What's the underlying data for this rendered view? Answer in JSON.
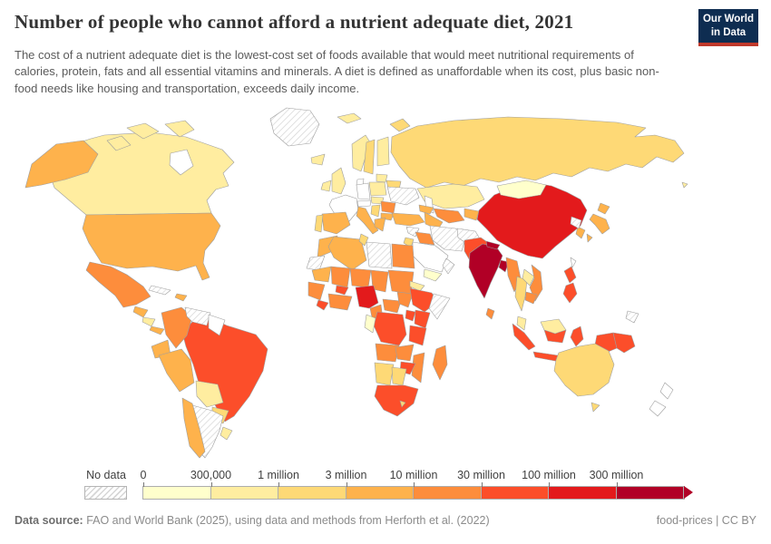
{
  "header": {
    "title": "Number of people who cannot afford a nutrient adequate diet, 2021",
    "subtitle": "The cost of a nutrient adequate diet is the lowest-cost set of foods available that would meet nutritional requirements of calories, protein, fats and all essential vitamins and minerals. A diet is defined as unaffordable when its cost, plus basic non-food needs like housing and transportation, exceeds daily income."
  },
  "logo": {
    "line1": "Our World",
    "line2": "in Data",
    "bg_color": "#0e2d51",
    "accent_color": "#c0392b"
  },
  "legend": {
    "no_data_label": "No data",
    "tick_labels": [
      "0",
      "300,000",
      "1 million",
      "3 million",
      "10 million",
      "30 million",
      "100 million",
      "300 million"
    ]
  },
  "footer": {
    "source_label": "Data source:",
    "source_text": " FAO and World Bank (2025), using data and methods from Herforth et al. (2022)",
    "right_text": "food-prices | CC BY"
  },
  "chart_data": {
    "type": "choropleth",
    "title": "Number of people who cannot afford a nutrient adequate diet",
    "year": 2021,
    "unit": "people",
    "legend_position": "bottom",
    "no_data_pattern": "diagonal-hatch",
    "zero_fill": "#FFFFFF",
    "bins": [
      {
        "range": "0 – 300,000",
        "color": "#FFFFCC"
      },
      {
        "range": "300,000 – 1 million",
        "color": "#FFEDA0"
      },
      {
        "range": "1 million – 3 million",
        "color": "#FED976"
      },
      {
        "range": "3 million – 10 million",
        "color": "#FEB24C"
      },
      {
        "range": "10 million – 30 million",
        "color": "#FD8D3C"
      },
      {
        "range": "30 million – 100 million",
        "color": "#FC4E2A"
      },
      {
        "range": "100 million – 300 million",
        "color": "#E31A1C"
      },
      {
        "range": "300 million+",
        "color": "#B10026"
      }
    ],
    "countries": [
      {
        "id": "greenland",
        "name": "Greenland",
        "bin": "no-data"
      },
      {
        "id": "canada",
        "name": "Canada",
        "bin": 1
      },
      {
        "id": "usa",
        "name": "United States",
        "bin": 3
      },
      {
        "id": "mexico",
        "name": "Mexico",
        "bin": 4
      },
      {
        "id": "guatemala",
        "name": "Guatemala",
        "bin": 3
      },
      {
        "id": "honduras-nicaragua",
        "name": "Honduras & Nicaragua",
        "bin": 1
      },
      {
        "id": "costa-rica-panama",
        "name": "Costa Rica & Panama",
        "bin": 3
      },
      {
        "id": "cuba",
        "name": "Cuba",
        "bin": "no-data"
      },
      {
        "id": "hispaniola",
        "name": "Haiti & Dominican Republic",
        "bin": 3
      },
      {
        "id": "colombia",
        "name": "Colombia",
        "bin": 4
      },
      {
        "id": "venezuela",
        "name": "Venezuela",
        "bin": "no-data"
      },
      {
        "id": "guyanas",
        "name": "Guyana & Suriname",
        "bin": "zero"
      },
      {
        "id": "ecuador",
        "name": "Ecuador",
        "bin": 3
      },
      {
        "id": "peru",
        "name": "Peru",
        "bin": 3
      },
      {
        "id": "brazil",
        "name": "Brazil",
        "bin": 5
      },
      {
        "id": "bolivia",
        "name": "Bolivia",
        "bin": 1
      },
      {
        "id": "paraguay",
        "name": "Paraguay",
        "bin": 2
      },
      {
        "id": "chile",
        "name": "Chile",
        "bin": 3
      },
      {
        "id": "argentina",
        "name": "Argentina",
        "bin": "no-data"
      },
      {
        "id": "uruguay",
        "name": "Uruguay",
        "bin": 1
      },
      {
        "id": "iceland",
        "name": "Iceland",
        "bin": 1
      },
      {
        "id": "svalbard",
        "name": "Svalbard",
        "bin": 1
      },
      {
        "id": "uk",
        "name": "United Kingdom",
        "bin": 1
      },
      {
        "id": "ireland",
        "name": "Ireland",
        "bin": 1
      },
      {
        "id": "norway",
        "name": "Norway",
        "bin": 1
      },
      {
        "id": "sweden",
        "name": "Sweden",
        "bin": 2
      },
      {
        "id": "finland",
        "name": "Finland",
        "bin": 1
      },
      {
        "id": "denmark",
        "name": "Denmark",
        "bin": "zero"
      },
      {
        "id": "baltics",
        "name": "Baltic states",
        "bin": 1
      },
      {
        "id": "belarus",
        "name": "Belarus",
        "bin": 2
      },
      {
        "id": "poland",
        "name": "Poland",
        "bin": 1
      },
      {
        "id": "germany",
        "name": "Germany",
        "bin": "zero"
      },
      {
        "id": "france",
        "name": "France",
        "bin": "zero"
      },
      {
        "id": "spain",
        "name": "Spain",
        "bin": 3
      },
      {
        "id": "portugal",
        "name": "Portugal",
        "bin": 2
      },
      {
        "id": "italy",
        "name": "Italy",
        "bin": 3
      },
      {
        "id": "switzerland-austria",
        "name": "Switzerland & Austria",
        "bin": "zero"
      },
      {
        "id": "czech-hungary",
        "name": "Czechia & Hungary",
        "bin": 1
      },
      {
        "id": "romania",
        "name": "Romania",
        "bin": 4
      },
      {
        "id": "balkans",
        "name": "Western Balkans",
        "bin": 2
      },
      {
        "id": "bulgaria",
        "name": "Bulgaria",
        "bin": 3
      },
      {
        "id": "greece",
        "name": "Greece",
        "bin": 3
      },
      {
        "id": "ukraine",
        "name": "Ukraine",
        "bin": "no-data"
      },
      {
        "id": "russia",
        "name": "Russia",
        "bin": 2
      },
      {
        "id": "kazakhstan",
        "name": "Kazakhstan",
        "bin": 1
      },
      {
        "id": "uzbekistan",
        "name": "Uzbekistan",
        "bin": 4
      },
      {
        "id": "turkmenistan",
        "name": "Turkmenistan",
        "bin": 3
      },
      {
        "id": "kyrgyzstan-tajikistan",
        "name": "Kyrgyzstan & Tajikistan",
        "bin": 3
      },
      {
        "id": "caucasus",
        "name": "Caucasus",
        "bin": 3
      },
      {
        "id": "turkey",
        "name": "Turkey",
        "bin": 3
      },
      {
        "id": "syria",
        "name": "Syria",
        "bin": "no-data"
      },
      {
        "id": "iraq",
        "name": "Iraq",
        "bin": 4
      },
      {
        "id": "iran",
        "name": "Iran",
        "bin": "no-data"
      },
      {
        "id": "saudi-arabia",
        "name": "Saudi Arabia",
        "bin": "zero"
      },
      {
        "id": "yemen",
        "name": "Yemen",
        "bin": 0
      },
      {
        "id": "oman",
        "name": "Oman",
        "bin": "no-data"
      },
      {
        "id": "jordan-israel",
        "name": "Jordan & Israel",
        "bin": 2
      },
      {
        "id": "afghanistan",
        "name": "Afghanistan",
        "bin": "no-data"
      },
      {
        "id": "pakistan",
        "name": "Pakistan",
        "bin": 5
      },
      {
        "id": "china",
        "name": "China",
        "bin": 6
      },
      {
        "id": "mongolia",
        "name": "Mongolia",
        "bin": 0
      },
      {
        "id": "india",
        "name": "India",
        "bin": 7
      },
      {
        "id": "nepal",
        "name": "Nepal",
        "bin": 7
      },
      {
        "id": "bangladesh",
        "name": "Bangladesh",
        "bin": 7
      },
      {
        "id": "sri-lanka",
        "name": "Sri Lanka",
        "bin": 4
      },
      {
        "id": "myanmar",
        "name": "Myanmar",
        "bin": 4
      },
      {
        "id": "thailand",
        "name": "Thailand",
        "bin": 2
      },
      {
        "id": "laos",
        "name": "Laos",
        "bin": 1
      },
      {
        "id": "vietnam",
        "name": "Vietnam",
        "bin": 4
      },
      {
        "id": "cambodia",
        "name": "Cambodia",
        "bin": 4
      },
      {
        "id": "malaysia",
        "name": "Malaysia",
        "bin": 1
      },
      {
        "id": "indonesia",
        "name": "Indonesia",
        "bin": 5
      },
      {
        "id": "philippines",
        "name": "Philippines",
        "bin": 5
      },
      {
        "id": "taiwan",
        "name": "Taiwan",
        "bin": "zero"
      },
      {
        "id": "south-korea",
        "name": "South Korea",
        "bin": 3
      },
      {
        "id": "north-korea",
        "name": "North Korea",
        "bin": "no-data"
      },
      {
        "id": "japan",
        "name": "Japan",
        "bin": 3
      },
      {
        "id": "papua-new-guinea",
        "name": "Papua New Guinea",
        "bin": 5
      },
      {
        "id": "solomon",
        "name": "Solomon Islands region",
        "bin": "no-data"
      },
      {
        "id": "timor",
        "name": "Timor-Leste",
        "bin": "no-data"
      },
      {
        "id": "morocco",
        "name": "Morocco",
        "bin": 3
      },
      {
        "id": "western-sahara",
        "name": "Western Sahara",
        "bin": "no-data"
      },
      {
        "id": "algeria",
        "name": "Algeria",
        "bin": 3
      },
      {
        "id": "tunisia",
        "name": "Tunisia",
        "bin": 2
      },
      {
        "id": "libya",
        "name": "Libya",
        "bin": "no-data"
      },
      {
        "id": "egypt",
        "name": "Egypt",
        "bin": 4
      },
      {
        "id": "mauritania",
        "name": "Mauritania",
        "bin": 3
      },
      {
        "id": "mali",
        "name": "Mali",
        "bin": 4
      },
      {
        "id": "burkina-faso",
        "name": "Burkina Faso",
        "bin": 5
      },
      {
        "id": "niger",
        "name": "Niger",
        "bin": 4
      },
      {
        "id": "chad",
        "name": "Chad",
        "bin": 4
      },
      {
        "id": "sudan",
        "name": "Sudan",
        "bin": 4
      },
      {
        "id": "senegal-guinea",
        "name": "Senegal & Guinea",
        "bin": 4
      },
      {
        "id": "sierra-leone-liberia",
        "name": "Sierra Leone & Liberia",
        "bin": 5
      },
      {
        "id": "cote-divoire-ghana",
        "name": "Côte d'Ivoire & Ghana",
        "bin": 4
      },
      {
        "id": "nigeria",
        "name": "Nigeria",
        "bin": 6
      },
      {
        "id": "cameroon",
        "name": "Cameroon",
        "bin": 4
      },
      {
        "id": "central-african-republic",
        "name": "Central African Republic",
        "bin": 4
      },
      {
        "id": "south-sudan",
        "name": "South Sudan",
        "bin": 4
      },
      {
        "id": "eritrea-djibouti",
        "name": "Eritrea & Djibouti",
        "bin": 1
      },
      {
        "id": "ethiopia",
        "name": "Ethiopia",
        "bin": 5
      },
      {
        "id": "somalia",
        "name": "Somalia",
        "bin": "no-data"
      },
      {
        "id": "kenya",
        "name": "Kenya",
        "bin": 5
      },
      {
        "id": "uganda",
        "name": "Uganda",
        "bin": 5
      },
      {
        "id": "drc",
        "name": "Democratic Republic of Congo",
        "bin": 5
      },
      {
        "id": "gabon-congo",
        "name": "Gabon & Congo",
        "bin": 0
      },
      {
        "id": "tanzania",
        "name": "Tanzania",
        "bin": 5
      },
      {
        "id": "angola",
        "name": "Angola",
        "bin": 4
      },
      {
        "id": "zambia",
        "name": "Zambia",
        "bin": 4
      },
      {
        "id": "mozambique",
        "name": "Mozambique",
        "bin": 4
      },
      {
        "id": "zimbabwe",
        "name": "Zimbabwe",
        "bin": 5
      },
      {
        "id": "namibia",
        "name": "Namibia",
        "bin": 2
      },
      {
        "id": "botswana",
        "name": "Botswana",
        "bin": 2
      },
      {
        "id": "south-africa",
        "name": "South Africa",
        "bin": 5
      },
      {
        "id": "lesotho",
        "name": "Lesotho",
        "bin": 2
      },
      {
        "id": "madagascar",
        "name": "Madagascar",
        "bin": 4
      },
      {
        "id": "australia",
        "name": "Australia",
        "bin": 2
      },
      {
        "id": "new-zealand",
        "name": "New Zealand",
        "bin": "zero"
      },
      {
        "id": "fiji",
        "name": "Fiji",
        "bin": 1
      }
    ]
  }
}
